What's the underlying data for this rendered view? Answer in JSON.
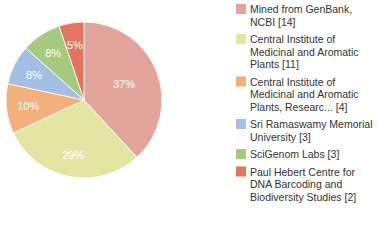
{
  "chart_data": {
    "type": "pie",
    "categories": [
      "Mined from GenBank, NCBI [14]",
      "Central Institute of Medicinal and Aromatic Plants [11]",
      "Central Institute of Medicinal and Aromatic Plants, Researc... [4]",
      "Sri Ramaswamy Memorial University [3]",
      "SciGenom Labs [3]",
      "Paul Hebert Centre for DNA Barcoding and Biodiversity Studies [2]"
    ],
    "values": [
      37,
      29,
      10,
      8,
      8,
      5
    ],
    "value_labels": [
      "37%",
      "29%",
      "10%",
      "8%",
      "8%",
      "5%"
    ],
    "colors": [
      "#e2a59b",
      "#e3e6a3",
      "#f2b07c",
      "#a5bfe3",
      "#a6cb80",
      "#e3755f"
    ],
    "data_labels": true,
    "legend": "right"
  }
}
